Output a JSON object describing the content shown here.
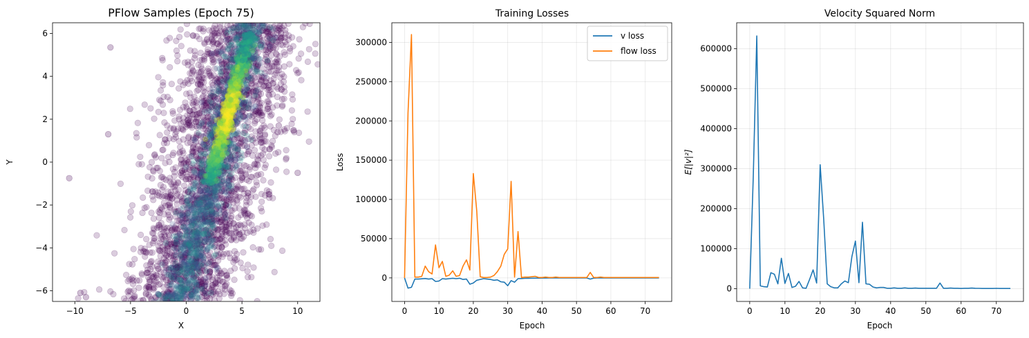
{
  "chart_data": [
    {
      "type": "scatter",
      "title": "PFlow Samples (Epoch 75)",
      "xlabel": "X",
      "ylabel": "Y",
      "xlim": [
        -12,
        12
      ],
      "ylim": [
        -6.5,
        6.5
      ],
      "xticks": [
        -10,
        -5,
        0,
        5,
        10
      ],
      "xtick_labels": [
        "−10",
        "−5",
        "0",
        "5",
        "10"
      ],
      "yticks": [
        -6,
        -4,
        -2,
        0,
        2,
        4,
        6
      ],
      "ytick_labels": [
        "−6",
        "−4",
        "−2",
        "0",
        "2",
        "4",
        "6"
      ],
      "grid": false,
      "colormap": "viridis",
      "colors": {
        "low": "#440154",
        "mid": "#21918c",
        "high": "#fde725"
      },
      "highlighted_points": [
        {
          "x": -10.5,
          "y": -0.75
        },
        {
          "x": 8.3,
          "y": 1.7
        },
        {
          "x": 8.2,
          "y": 1.4
        },
        {
          "x": 7.4,
          "y": -1.5
        },
        {
          "x": 8.5,
          "y": 6.0
        },
        {
          "x": -6.8,
          "y": 5.35
        },
        {
          "x": -7.0,
          "y": 1.3
        },
        {
          "x": -9.5,
          "y": -6.1
        },
        {
          "x": -9.0,
          "y": -6.3
        },
        {
          "x": 10.0,
          "y": -0.5
        }
      ]
    },
    {
      "type": "line",
      "title": "Training Losses",
      "xlabel": "Epoch",
      "ylabel": "Loss",
      "xlim": [
        -3.7,
        77.7
      ],
      "ylim": [
        -30000,
        325000
      ],
      "xticks": [
        0,
        10,
        20,
        30,
        40,
        50,
        60,
        70
      ],
      "xtick_labels": [
        "0",
        "10",
        "20",
        "30",
        "40",
        "50",
        "60",
        "70"
      ],
      "yticks": [
        0,
        50000,
        100000,
        150000,
        200000,
        250000,
        300000
      ],
      "ytick_labels": [
        "0",
        "50000",
        "100000",
        "150000",
        "200000",
        "250000",
        "300000"
      ],
      "grid": true,
      "legend": "top-right",
      "series": [
        {
          "name": "v loss",
          "color": "#1f77b4",
          "x": [
            0,
            1,
            2,
            3,
            4,
            5,
            6,
            7,
            8,
            9,
            10,
            11,
            12,
            13,
            14,
            15,
            16,
            17,
            18,
            19,
            20,
            21,
            22,
            23,
            24,
            25,
            26,
            27,
            28,
            29,
            30,
            31,
            32,
            33,
            34,
            35,
            36,
            37,
            38,
            39,
            40,
            41,
            42,
            43,
            44,
            45,
            46,
            47,
            48,
            49,
            50,
            51,
            52,
            53,
            54,
            55,
            56,
            57,
            58,
            59,
            60,
            61,
            62,
            63,
            64,
            65,
            66,
            67,
            68,
            69,
            70,
            71,
            72,
            73,
            74
          ],
          "values": [
            0,
            -13000,
            -12000,
            -1500,
            -1500,
            -1200,
            -800,
            -1500,
            -1000,
            -4500,
            -4000,
            -1000,
            -1500,
            -1000,
            -500,
            -1000,
            -500,
            -2000,
            -1500,
            -8000,
            -6500,
            -3000,
            -2000,
            -1000,
            -1500,
            -2000,
            -3000,
            -2500,
            -5000,
            -5500,
            -10000,
            -3500,
            -5500,
            -1000,
            -800,
            -600,
            -500,
            -400,
            -300,
            -300,
            -200,
            -200,
            -100,
            -100,
            -100,
            -100,
            -100,
            -100,
            -100,
            -100,
            -100,
            -100,
            -100,
            -100,
            -1500,
            -300,
            -100,
            -100,
            -100,
            -100,
            -100,
            -100,
            -100,
            -100,
            -100,
            -100,
            -100,
            -100,
            -100,
            -100,
            -100,
            -100,
            -100,
            -100,
            -100
          ]
        },
        {
          "name": "flow loss",
          "color": "#ff7f0e",
          "x": [
            0,
            1,
            2,
            3,
            4,
            5,
            6,
            7,
            8,
            9,
            10,
            11,
            12,
            13,
            14,
            15,
            16,
            17,
            18,
            19,
            20,
            21,
            22,
            23,
            24,
            25,
            26,
            27,
            28,
            29,
            30,
            31,
            32,
            33,
            34,
            35,
            36,
            37,
            38,
            39,
            40,
            41,
            42,
            43,
            44,
            45,
            46,
            47,
            48,
            49,
            50,
            51,
            52,
            53,
            54,
            55,
            56,
            57,
            58,
            59,
            60,
            61,
            62,
            63,
            64,
            65,
            66,
            67,
            68,
            69,
            70,
            71,
            72,
            73,
            74
          ],
          "values": [
            0,
            210000,
            310000,
            1000,
            1000,
            2000,
            15000,
            8000,
            5000,
            42000,
            13000,
            21000,
            2000,
            3500,
            9000,
            2000,
            3000,
            15000,
            23000,
            10000,
            133000,
            85000,
            1500,
            500,
            500,
            1000,
            3000,
            8000,
            15000,
            30000,
            37000,
            123000,
            1000,
            59000,
            500,
            1000,
            1000,
            1500,
            2000,
            500,
            500,
            1000,
            500,
            500,
            1000,
            500,
            500,
            500,
            500,
            500,
            500,
            500,
            500,
            500,
            7000,
            500,
            500,
            1000,
            500,
            500,
            500,
            500,
            500,
            500,
            500,
            500,
            500,
            500,
            500,
            500,
            500,
            500,
            500,
            500,
            500
          ]
        }
      ]
    },
    {
      "type": "line",
      "title": "Velocity Squared Norm",
      "xlabel": "Epoch",
      "ylabel": "E[|v|²]",
      "xlim": [
        -3.7,
        77.7
      ],
      "ylim": [
        -32000,
        665000
      ],
      "xticks": [
        0,
        10,
        20,
        30,
        40,
        50,
        60,
        70
      ],
      "xtick_labels": [
        "0",
        "10",
        "20",
        "30",
        "40",
        "50",
        "60",
        "70"
      ],
      "yticks": [
        0,
        100000,
        200000,
        300000,
        400000,
        500000,
        600000
      ],
      "ytick_labels": [
        "0",
        "100000",
        "200000",
        "300000",
        "400000",
        "500000",
        "600000"
      ],
      "grid": true,
      "series": [
        {
          "color": "#1f77b4",
          "x": [
            0,
            1,
            2,
            3,
            4,
            5,
            6,
            7,
            8,
            9,
            10,
            11,
            12,
            13,
            14,
            15,
            16,
            17,
            18,
            19,
            20,
            21,
            22,
            23,
            24,
            25,
            26,
            27,
            28,
            29,
            30,
            31,
            32,
            33,
            34,
            35,
            36,
            37,
            38,
            39,
            40,
            41,
            42,
            43,
            44,
            45,
            46,
            47,
            48,
            49,
            50,
            51,
            52,
            53,
            54,
            55,
            56,
            57,
            58,
            59,
            60,
            61,
            62,
            63,
            64,
            65,
            66,
            67,
            68,
            69,
            70,
            71,
            72,
            73,
            74
          ],
          "values": [
            0,
            280000,
            632000,
            7000,
            5000,
            4000,
            40000,
            36000,
            12000,
            76000,
            13000,
            38000,
            3000,
            6000,
            18000,
            2000,
            1000,
            23000,
            47000,
            14000,
            310000,
            175000,
            12000,
            5000,
            2000,
            2000,
            12000,
            19000,
            15000,
            80000,
            119000,
            15000,
            166000,
            12000,
            11000,
            4000,
            2000,
            3000,
            3000,
            1000,
            1000,
            2000,
            1000,
            1000,
            2000,
            1000,
            1000,
            1500,
            1000,
            1000,
            1000,
            1000,
            1000,
            1000,
            14000,
            1000,
            1000,
            1500,
            1000,
            1000,
            500,
            1000,
            1000,
            1500,
            1000,
            800,
            500,
            500,
            500,
            500,
            800,
            500,
            500,
            500,
            500
          ]
        }
      ]
    }
  ]
}
